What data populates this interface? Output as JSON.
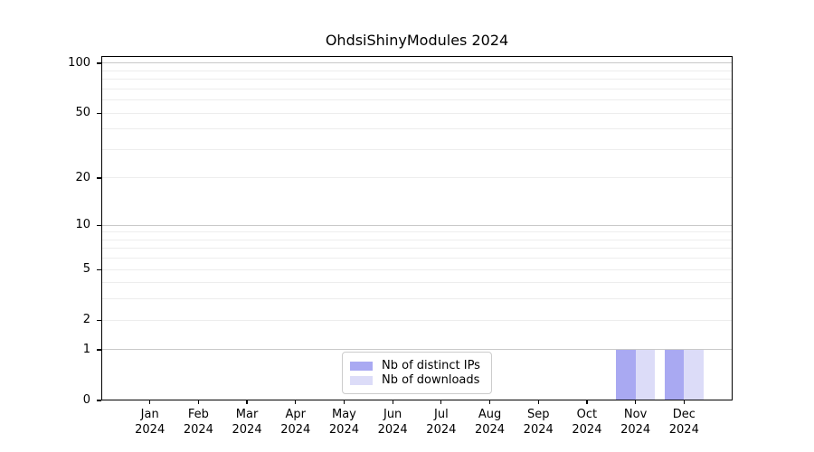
{
  "chart_data": {
    "type": "bar",
    "title": "OhdsiShinyModules 2024",
    "x": {
      "months": [
        "Jan",
        "Feb",
        "Mar",
        "Apr",
        "May",
        "Jun",
        "Jul",
        "Aug",
        "Sep",
        "Oct",
        "Nov",
        "Dec"
      ],
      "year": "2024"
    },
    "series": [
      {
        "name": "Nb of distinct IPs",
        "color": "#a9a9f2",
        "values": [
          0,
          0,
          0,
          0,
          0,
          0,
          0,
          0,
          0,
          0,
          1,
          1
        ]
      },
      {
        "name": "Nb of downloads",
        "color": "#dcdcf8",
        "values": [
          0,
          0,
          0,
          0,
          0,
          0,
          0,
          0,
          0,
          0,
          1,
          1
        ]
      }
    ],
    "yscale": "log1p",
    "ylim": [
      0,
      110.5
    ],
    "y_ticks": [
      0,
      1,
      2,
      5,
      10,
      20,
      50,
      100
    ],
    "y_minor_gridlines": [
      3,
      4,
      6,
      7,
      8,
      9,
      30,
      40,
      60,
      70,
      80,
      90
    ],
    "y_strong_gridlines": [
      1,
      10,
      100
    ],
    "legend_position": "lower center",
    "grid": true
  },
  "colors": {
    "grid_strong": "#c9c9c9",
    "grid_weak": "#ededed",
    "spine": "#000000",
    "text": "#000000",
    "background": "#ffffff"
  }
}
